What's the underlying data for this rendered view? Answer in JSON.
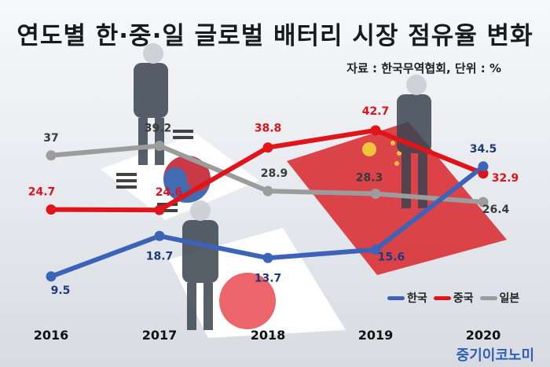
{
  "title": "연도별 한·중·일 글로벌 배터리 시장 점유율 변화",
  "source": "자료 : 한국무역협회, 단위 : %",
  "brand": "중기이코노미",
  "colors": {
    "korea": "#3d63b8",
    "china": "#e0141b",
    "japan": "#9c9c9c",
    "korea_label": "#1f3a7a",
    "china_label": "#d9141b",
    "japan_label": "#3a3a3a"
  },
  "chart_data": {
    "type": "line",
    "x": [
      "2016",
      "2017",
      "2018",
      "2019",
      "2020"
    ],
    "series": [
      {
        "name": "한국",
        "key": "korea",
        "values": [
          9.5,
          18.7,
          13.7,
          15.6,
          34.5
        ],
        "labels": [
          "9.5",
          "18.7",
          "13.7",
          "15.6",
          "34.5"
        ]
      },
      {
        "name": "중국",
        "key": "china",
        "values": [
          24.7,
          24.6,
          38.8,
          42.7,
          32.9
        ],
        "labels": [
          "24.7",
          "24.6",
          "38.8",
          "42.7",
          "32.9"
        ]
      },
      {
        "name": "일본",
        "key": "japan",
        "values": [
          37,
          39.2,
          28.9,
          28.3,
          26.4
        ],
        "labels": [
          "37",
          "39.2",
          "28.9",
          "28.3",
          "26.4"
        ]
      }
    ],
    "legend_position": "bottom-right",
    "grid": false
  }
}
